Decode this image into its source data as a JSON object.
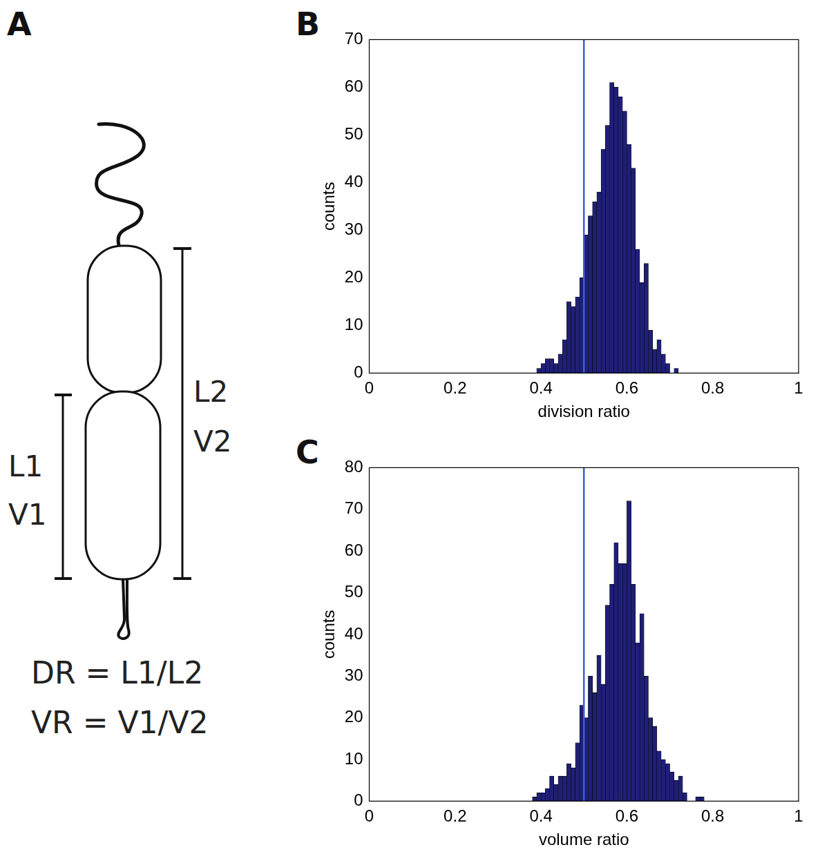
{
  "diagram": {
    "panel_label": "A",
    "bracket_short": [
      "L1",
      "V1"
    ],
    "bracket_long": [
      "L2",
      "V2"
    ],
    "formulas": [
      "DR = L1/L2",
      "VR = V1/V2"
    ]
  },
  "chart_data": [
    {
      "panel_label": "B",
      "type": "histogram",
      "xlabel": "division ratio",
      "ylabel": "counts",
      "color": "#1f1f78",
      "grid": false,
      "bins": [
        0.39,
        0.4,
        0.41,
        0.42,
        0.43,
        0.44,
        0.45,
        0.46,
        0.47,
        0.48,
        0.49,
        0.5,
        0.51,
        0.52,
        0.53,
        0.54,
        0.55,
        0.56,
        0.57,
        0.58,
        0.59,
        0.6,
        0.61,
        0.62,
        0.63,
        0.64,
        0.65,
        0.66,
        0.67,
        0.68,
        0.69,
        0.7,
        0.71,
        0.72
      ],
      "counts": [
        1,
        2,
        3,
        3,
        2,
        4,
        7,
        15,
        14,
        16,
        20,
        29,
        33,
        36,
        38,
        47,
        52,
        61,
        60,
        58,
        55,
        48,
        43,
        26,
        19,
        23,
        9,
        5,
        7,
        4,
        2,
        0,
        1
      ],
      "xlim": [
        0,
        1
      ],
      "xticks": [
        0,
        0.2,
        0.4,
        0.6,
        0.8,
        1
      ],
      "ylim": [
        0,
        70
      ],
      "yticks": [
        0,
        10,
        20,
        30,
        40,
        50,
        60,
        70
      ],
      "vline": 0.5,
      "vline_color": "#3a5fcd"
    },
    {
      "panel_label": "C",
      "type": "histogram",
      "xlabel": "volume ratio",
      "ylabel": "counts",
      "color": "#1f1f78",
      "grid": false,
      "bins": [
        0.38,
        0.39,
        0.4,
        0.41,
        0.42,
        0.43,
        0.44,
        0.45,
        0.46,
        0.47,
        0.48,
        0.49,
        0.5,
        0.51,
        0.52,
        0.53,
        0.54,
        0.55,
        0.56,
        0.57,
        0.58,
        0.59,
        0.6,
        0.61,
        0.62,
        0.63,
        0.64,
        0.65,
        0.66,
        0.67,
        0.68,
        0.69,
        0.7,
        0.71,
        0.72,
        0.73,
        0.74,
        0.75,
        0.76,
        0.77,
        0.78
      ],
      "counts": [
        1,
        2,
        2,
        3,
        6,
        4,
        6,
        6,
        9,
        8,
        14,
        23,
        20,
        30,
        26,
        35,
        28,
        47,
        52,
        62,
        57,
        57,
        72,
        52,
        38,
        45,
        30,
        20,
        18,
        12,
        10,
        9,
        7,
        5,
        6,
        2,
        0,
        0,
        1,
        1
      ],
      "xlim": [
        0,
        1
      ],
      "xticks": [
        0,
        0.2,
        0.4,
        0.6,
        0.8,
        1
      ],
      "ylim": [
        0,
        80
      ],
      "yticks": [
        0,
        10,
        20,
        30,
        40,
        50,
        60,
        70,
        80
      ],
      "vline": 0.5,
      "vline_color": "#3a5fcd"
    }
  ]
}
